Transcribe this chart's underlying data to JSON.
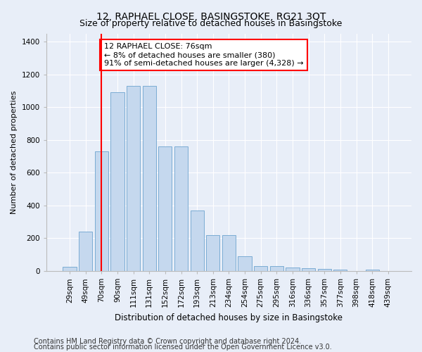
{
  "title": "12, RAPHAEL CLOSE, BASINGSTOKE, RG21 3QT",
  "subtitle": "Size of property relative to detached houses in Basingstoke",
  "xlabel": "Distribution of detached houses by size in Basingstoke",
  "ylabel": "Number of detached properties",
  "categories": [
    "29sqm",
    "49sqm",
    "70sqm",
    "90sqm",
    "111sqm",
    "131sqm",
    "152sqm",
    "172sqm",
    "193sqm",
    "213sqm",
    "234sqm",
    "254sqm",
    "275sqm",
    "295sqm",
    "316sqm",
    "336sqm",
    "357sqm",
    "377sqm",
    "398sqm",
    "418sqm",
    "439sqm"
  ],
  "values": [
    25,
    240,
    730,
    1090,
    1130,
    1130,
    760,
    760,
    370,
    220,
    220,
    90,
    30,
    30,
    20,
    18,
    14,
    10,
    0,
    8,
    0
  ],
  "bar_color": "#c5d8ee",
  "bar_edge_color": "#7bacd4",
  "vline_x_index": 2,
  "vline_color": "red",
  "annotation_text": "12 RAPHAEL CLOSE: 76sqm\n← 8% of detached houses are smaller (380)\n91% of semi-detached houses are larger (4,328) →",
  "annotation_box_color": "white",
  "annotation_box_edge_color": "red",
  "ylim": [
    0,
    1450
  ],
  "yticks": [
    0,
    200,
    400,
    600,
    800,
    1000,
    1200,
    1400
  ],
  "footer1": "Contains HM Land Registry data © Crown copyright and database right 2024.",
  "footer2": "Contains public sector information licensed under the Open Government Licence v3.0.",
  "bg_color": "#e8eef8",
  "plot_bg_color": "#e8eef8",
  "title_fontsize": 10,
  "subtitle_fontsize": 9,
  "xlabel_fontsize": 8.5,
  "ylabel_fontsize": 8,
  "tick_fontsize": 7.5,
  "footer_fontsize": 7,
  "annotation_fontsize": 8
}
